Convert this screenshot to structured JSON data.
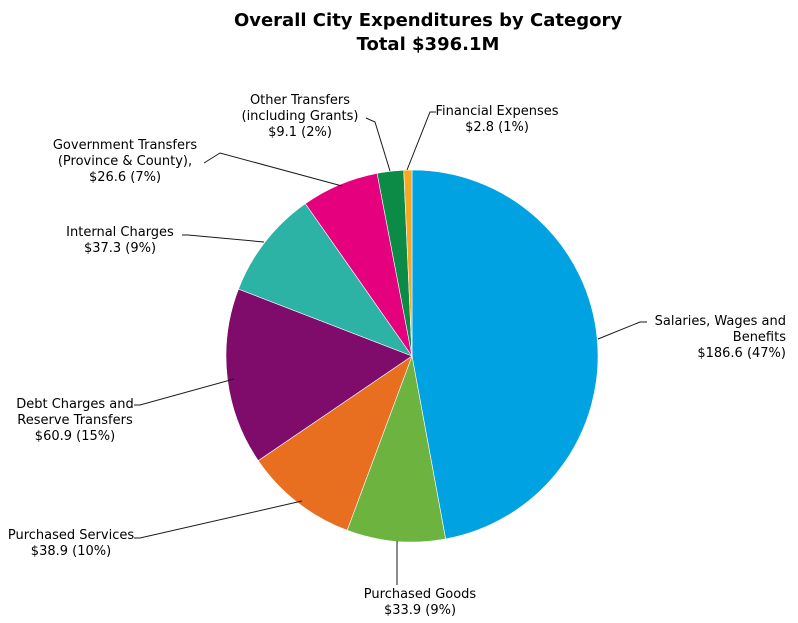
{
  "chart_data": {
    "type": "pie",
    "title": "Overall City Expenditures by Category",
    "subtitle": "Total $396.1M",
    "slices": [
      {
        "label": "Salaries, Wages and Benefits",
        "value": 186.6,
        "percent": 47,
        "label_lines": [
          "Salaries, Wages and",
          "Benefits",
          "$186.6 (47%)"
        ],
        "color": "#00A2E1"
      },
      {
        "label": "Purchased Goods",
        "value": 33.9,
        "percent": 9,
        "label_lines": [
          "Purchased Goods",
          "$33.9 (9%)"
        ],
        "color": "#6DB33F"
      },
      {
        "label": "Purchased Services",
        "value": 38.9,
        "percent": 10,
        "label_lines": [
          "Purchased Services",
          "$38.9 (10%)"
        ],
        "color": "#E86E20"
      },
      {
        "label": "Debt Charges and Reserve Transfers",
        "value": 60.9,
        "percent": 15,
        "label_lines": [
          "Debt Charges and",
          "Reserve Transfers",
          "$60.9 (15%)"
        ],
        "color": "#7F0C6B"
      },
      {
        "label": "Internal Charges",
        "value": 37.3,
        "percent": 9,
        "label_lines": [
          "Internal Charges",
          "$37.3 (9%)"
        ],
        "color": "#2DB2A6"
      },
      {
        "label": "Government Transfers (Province & County)",
        "value": 26.6,
        "percent": 7,
        "label_lines": [
          "Government Transfers",
          "(Province & County),",
          "$26.6 (7%)"
        ],
        "color": "#E5007E"
      },
      {
        "label": "Other Transfers (including Grants)",
        "value": 9.1,
        "percent": 2,
        "label_lines": [
          "Other Transfers",
          "(including Grants)",
          "$9.1 (2%)"
        ],
        "color": "#0B8B45"
      },
      {
        "label": "Financial Expenses",
        "value": 2.8,
        "percent": 1,
        "label_lines": [
          "Financial Expenses",
          "$2.8 (1%)"
        ],
        "color": "#F7A823"
      }
    ]
  }
}
